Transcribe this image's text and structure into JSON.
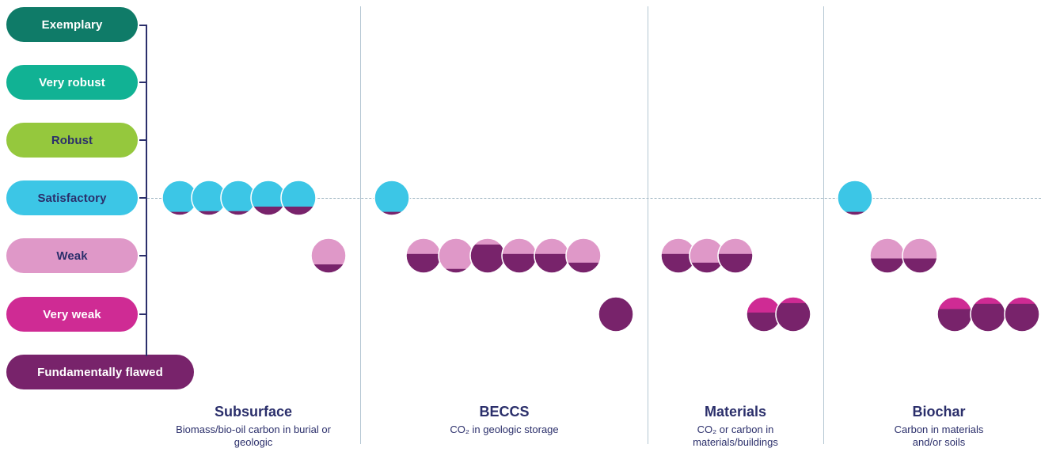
{
  "colors": {
    "exemplary": "#0f7b68",
    "very_robust": "#11b294",
    "robust": "#95c83d",
    "satisfactory": "#3cc6e6",
    "weak": "#df98c8",
    "very_weak": "#cf2b94",
    "fundamentally_flawed": "#78236b",
    "axis": "#2b2f6b",
    "text_dark": "#2b2f6b",
    "text_light": "#ffffff"
  },
  "chart_data": {
    "type": "scatter",
    "levels": [
      {
        "key": "exemplary",
        "label": "Exemplary"
      },
      {
        "key": "very_robust",
        "label": "Very robust"
      },
      {
        "key": "robust",
        "label": "Robust"
      },
      {
        "key": "satisfactory",
        "label": "Satisfactory"
      },
      {
        "key": "weak",
        "label": "Weak"
      },
      {
        "key": "very_weak",
        "label": "Very weak"
      },
      {
        "key": "fundamentally_flawed",
        "label": "Fundamentally flawed"
      }
    ],
    "groups": [
      {
        "title": "Subsurface",
        "subtitle": "Biomass/bio-oil carbon in burial or geologic",
        "items": [
          {
            "level": "satisfactory",
            "lower": "fundamentally_flawed",
            "split": 0.1
          },
          {
            "level": "satisfactory",
            "lower": "fundamentally_flawed",
            "split": 0.12
          },
          {
            "level": "satisfactory",
            "lower": "fundamentally_flawed",
            "split": 0.12
          },
          {
            "level": "satisfactory",
            "lower": "fundamentally_flawed",
            "split": 0.25
          },
          {
            "level": "satisfactory",
            "lower": "fundamentally_flawed",
            "split": 0.25
          },
          {
            "level": "weak",
            "lower": "fundamentally_flawed",
            "split": 0.25
          }
        ]
      },
      {
        "title": "BECCS",
        "subtitle": "CO₂ in geologic storage",
        "items": [
          {
            "level": "satisfactory",
            "lower": "fundamentally_flawed",
            "split": 0.1
          },
          {
            "level": "weak",
            "lower": "fundamentally_flawed",
            "split": 0.55
          },
          {
            "level": "weak",
            "lower": "fundamentally_flawed",
            "split": 0.12
          },
          {
            "level": "weak",
            "lower": "fundamentally_flawed",
            "split": 0.82
          },
          {
            "level": "weak",
            "lower": "fundamentally_flawed",
            "split": 0.55
          },
          {
            "level": "weak",
            "lower": "fundamentally_flawed",
            "split": 0.55
          },
          {
            "level": "weak",
            "lower": "fundamentally_flawed",
            "split": 0.3
          },
          {
            "level": "very_weak",
            "lower": "fundamentally_flawed",
            "split": 1.0
          }
        ]
      },
      {
        "title": "Materials",
        "subtitle": "CO₂ or carbon in materials/buildings",
        "items": [
          {
            "level": "weak",
            "lower": "fundamentally_flawed",
            "split": 0.55
          },
          {
            "level": "weak",
            "lower": "fundamentally_flawed",
            "split": 0.3
          },
          {
            "level": "weak",
            "lower": "fundamentally_flawed",
            "split": 0.55
          },
          {
            "level": "very_weak",
            "lower": "fundamentally_flawed",
            "split": 0.55
          },
          {
            "level": "very_weak",
            "lower": "fundamentally_flawed",
            "split": 0.82
          }
        ]
      },
      {
        "title": "Biochar",
        "subtitle": "Carbon in materials and/or soils",
        "items": [
          {
            "level": "satisfactory",
            "lower": "fundamentally_flawed",
            "split": 0.1
          },
          {
            "level": "weak",
            "lower": "fundamentally_flawed",
            "split": 0.42
          },
          {
            "level": "weak",
            "lower": "fundamentally_flawed",
            "split": 0.42
          },
          {
            "level": "very_weak",
            "lower": "fundamentally_flawed",
            "split": 0.65
          },
          {
            "level": "very_weak",
            "lower": "fundamentally_flawed",
            "split": 0.8
          },
          {
            "level": "very_weak",
            "lower": "fundamentally_flawed",
            "split": 0.8
          }
        ]
      }
    ]
  }
}
